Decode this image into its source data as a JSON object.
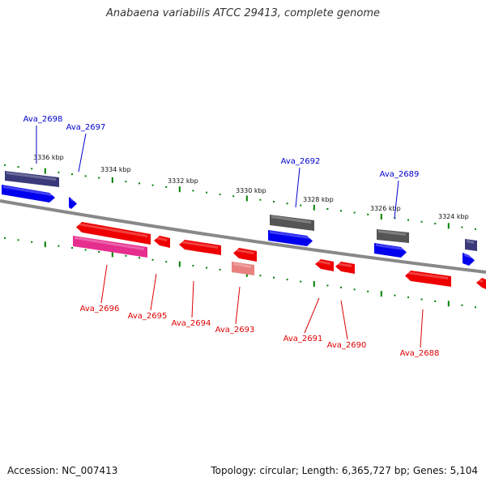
{
  "title": "Anabaena variabilis ATCC 29413, complete genome",
  "footer": {
    "accession": "Accession: NC_007413",
    "stats": "Topology: circular; Length: 6,365,727 bp; Genes: 5,104"
  },
  "colors": {
    "forward_gene_label": "#0000cc",
    "reverse_gene_label": "#dd0000",
    "cds_forward": "#0000ee",
    "cds_reverse": "#ee0000",
    "gene_forward": "#3a3a7a",
    "gene_reverse": "#e62e8e",
    "pseudo_gray": "#555555",
    "pseudo_pink": "#e88080",
    "tick": "#008000",
    "backbone": "#888888"
  },
  "scale": {
    "unit": "kbp",
    "labels": [
      "3336 kbp",
      "3334 kbp",
      "3332 kbp",
      "3330 kbp",
      "3328 kbp",
      "3326 kbp",
      "3324 kbp"
    ]
  },
  "genes": {
    "forward": [
      "Ava_2698",
      "Ava_2697",
      "Ava_2692",
      "Ava_2689"
    ],
    "reverse": [
      "Ava_2696",
      "Ava_2695",
      "Ava_2694",
      "Ava_2693",
      "Ava_2691",
      "Ava_2690",
      "Ava_2688"
    ]
  }
}
